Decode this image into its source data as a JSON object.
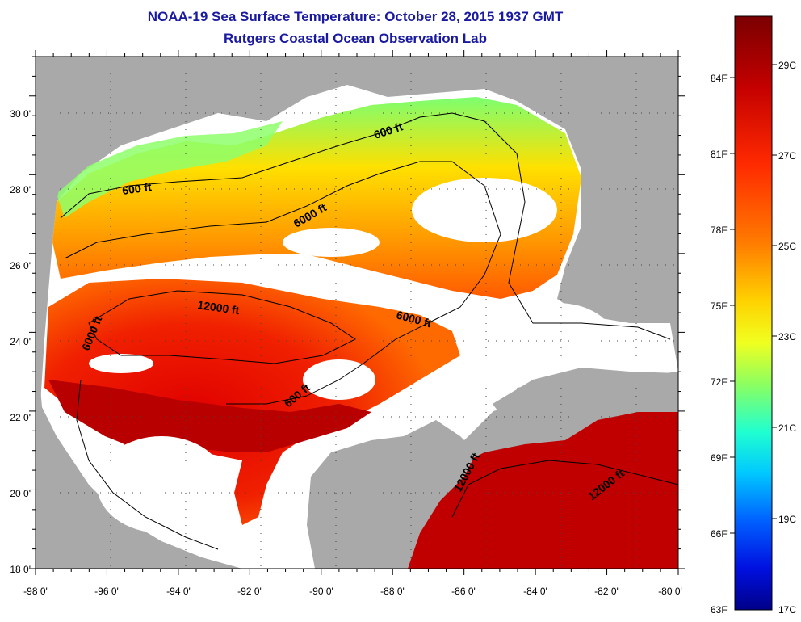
{
  "title": {
    "line1": "NOAA-19 Sea Surface Temperature:  October 28, 2015 1937 GMT",
    "line2": "Rutgers Coastal Ocean Observation Lab"
  },
  "map": {
    "lon_range": [
      -98,
      -80
    ],
    "lat_range": [
      18,
      31
    ],
    "lon_ticks": [
      "-98 0'",
      "-96 0'",
      "-94 0'",
      "-92 0'",
      "-90 0'",
      "-88 0'",
      "-86 0'",
      "-84 0'",
      "-82 0'",
      "-80 0'"
    ],
    "lat_ticks": [
      "18 0'",
      "20 0'",
      "22 0'",
      "24 0'",
      "26 0'",
      "28 0'",
      "30 0'"
    ],
    "colors": {
      "land": "#a9a9a9",
      "cloud": "#ffffff",
      "frame": "#000000"
    },
    "contour_labels": [
      {
        "text": "600 ft"
      },
      {
        "text": "600 ft"
      },
      {
        "text": "6000 ft"
      },
      {
        "text": "12000 ft"
      },
      {
        "text": "6000 ft"
      },
      {
        "text": "6000 ft"
      },
      {
        "text": "600 ft"
      },
      {
        "text": "12000 ft"
      },
      {
        "text": "12000 ft"
      }
    ]
  },
  "colorbar": {
    "fahrenheit": [
      "84F",
      "81F",
      "78F",
      "75F",
      "72F",
      "69F",
      "66F",
      "63F"
    ],
    "celsius": [
      "29C",
      "27C",
      "25C",
      "23C",
      "21C",
      "19C",
      "17C"
    ],
    "colors": [
      "#7a0000",
      "#c40000",
      "#ff2a00",
      "#ff7a00",
      "#ffc800",
      "#ffff00",
      "#9cff5a",
      "#2affc4",
      "#00d2ff",
      "#0078ff",
      "#0018ff",
      "#000090"
    ]
  }
}
